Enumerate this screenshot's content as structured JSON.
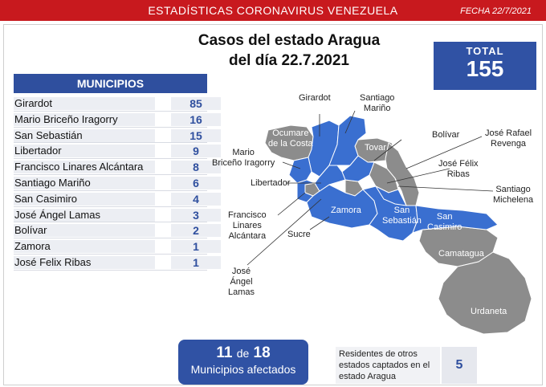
{
  "header": {
    "title": "ESTADÍSTICAS CORONAVIRUS VENEZUELA",
    "date": "FECHA 22/7/2021"
  },
  "main_title": {
    "line1": "Casos del estado Aragua",
    "line2": "del día 22.7.2021"
  },
  "total": {
    "label": "TOTAL",
    "value": "155"
  },
  "municipios": {
    "header": "MUNICIPIOS",
    "rows": [
      {
        "name": "Girardot",
        "count": "85"
      },
      {
        "name": "Mario Briceño Iragorry",
        "count": "16"
      },
      {
        "name": "San Sebastián",
        "count": "15"
      },
      {
        "name": "Libertador",
        "count": "9"
      },
      {
        "name": "Francisco Linares Alcántara",
        "count": "8"
      },
      {
        "name": "Santiago Mariño",
        "count": "6"
      },
      {
        "name": "San Casimiro",
        "count": "4"
      },
      {
        "name": "José Ángel Lamas",
        "count": "3"
      },
      {
        "name": "Bolívar",
        "count": "2"
      },
      {
        "name": "Zamora",
        "count": "1"
      },
      {
        "name": "José Felix Ribas",
        "count": "1"
      }
    ]
  },
  "map": {
    "affected_color": "#3a6fd0",
    "unaffected_color": "#8c8c8c",
    "labels": {
      "girardot": "Girardot",
      "santiago_marino": "Santiago\nMariño",
      "ocumare": "Ocumare\nde la Costa",
      "tovar": "Tovar",
      "bolivar": "Bolívar",
      "jose_rafael_revenga": "José Rafael\nRevenga",
      "mario_briceno": "Mario\nBriceño Iragorry",
      "jose_felix_ribas": "José Félix\nRibas",
      "libertador": "Libertador",
      "santiago_michelena": "Santiago\nMichelena",
      "zamora": "Zamora",
      "san_sebastian": "San\nSebastián",
      "san_casimiro": "San\nCasimiro",
      "francisco_linares": "Francisco\nLinares\nAlcántara",
      "sucre": "Sucre",
      "camatagua": "Camatagua",
      "urdaneta": "Urdaneta",
      "jose_angel_lamas": "José\nÁngel\nLamas"
    }
  },
  "affected": {
    "count": "11",
    "of": "de",
    "total": "18",
    "label": "Municipios afectados"
  },
  "residents": {
    "label": "Residentes de otros estados captados en el estado Aragua",
    "value": "5"
  }
}
